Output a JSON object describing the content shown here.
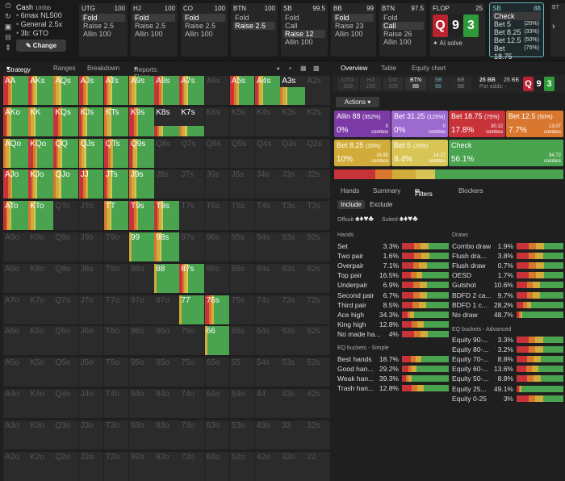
{
  "left_icons": [
    "⏻",
    "↻",
    "▣",
    "⊟",
    "⇕"
  ],
  "cash": {
    "title": "Cash",
    "bb": "100bb",
    "lines": [
      "6max NL500",
      "General 2.5x",
      "3b: GTO"
    ],
    "change": "Change"
  },
  "positions": [
    {
      "name": "UTG",
      "stack": "100",
      "options": [
        "Fold",
        "Raise 2.5",
        "Allin 100"
      ],
      "sel": 0
    },
    {
      "name": "HJ",
      "stack": "100",
      "options": [
        "Fold",
        "Raise 2.5",
        "Allin 100"
      ],
      "sel": 0
    },
    {
      "name": "CO",
      "stack": "100",
      "options": [
        "Fold",
        "Raise 2.5",
        "Allin 100"
      ],
      "sel": 0
    },
    {
      "name": "BTN",
      "stack": "100",
      "options": [
        "Fold",
        "Raise 2.5"
      ],
      "sel": 1
    },
    {
      "name": "SB",
      "stack": "99.5",
      "options": [
        "Fold",
        "Call",
        "Raise 12",
        "Allin 100"
      ],
      "sel": 2
    },
    {
      "name": "BB",
      "stack": "99",
      "options": [
        "Fold",
        "Raise 23",
        "Allin 100"
      ],
      "sel": 0
    },
    {
      "name": "BTN",
      "stack": "97.5",
      "options": [
        "Fold",
        "Call",
        "Raise 26",
        "Allin 100"
      ],
      "sel": 1
    }
  ],
  "flop": {
    "label": "FLOP",
    "pot": "25",
    "cards": [
      "Q",
      "9",
      "3"
    ],
    "ai": "AI solve"
  },
  "sb_box": {
    "label": "SB",
    "stack": "88",
    "options": [
      [
        "Check",
        ""
      ],
      [
        "Bet 5",
        "(20%)"
      ],
      [
        "Bet 8.25",
        "(33%)"
      ],
      [
        "Bet 12.5",
        "(50%)"
      ],
      [
        "Bet 18.75",
        "(75%)"
      ]
    ],
    "sel": 0
  },
  "next_box": {
    "label": "BT"
  },
  "left_tabs": {
    "strategy": "Strategy",
    "ranges": "Ranges",
    "breakdown": "Breakdown",
    "reports": "Reports: Flops"
  },
  "right_tabs": {
    "overview": "Overview",
    "table": "Table",
    "equity": "Equity chart"
  },
  "info": {
    "mini": [
      "UTG",
      "HJ",
      "CO",
      "BTN",
      "SB",
      "BB"
    ],
    "mini_vals": [
      "100",
      "100",
      "100",
      "88",
      "88",
      "88"
    ],
    "pot": "25 BB",
    "pot_odds": "Pot odds: -",
    "stack": "25 BB",
    "cards": [
      "Q",
      "9",
      "3"
    ]
  },
  "actions_label": "Actions",
  "action_boxes": [
    {
      "name": "Allin 88",
      "pct_bet": "(352%)",
      "freq": "0%",
      "combos": "0",
      "color": "#7c3aa6"
    },
    {
      "name": "Bet 31.25",
      "pct_bet": "(125%)",
      "freq": "0%",
      "combos": "0",
      "color": "#9d6ad0"
    },
    {
      "name": "Bet 18.75",
      "pct_bet": "(75%)",
      "freq": "17.8%",
      "combos": "30.12",
      "color": "#c8333a"
    },
    {
      "name": "Bet 12.5",
      "pct_bet": "(50%)",
      "freq": "7.7%",
      "combos": "13.07",
      "color": "#d9772e"
    },
    {
      "name": "Bet 8.25",
      "pct_bet": "(33%)",
      "freq": "10%",
      "combos": "16.93",
      "color": "#d2ac3a"
    },
    {
      "name": "Bet 5",
      "pct_bet": "(20%)",
      "freq": "8.4%",
      "combos": "14.27",
      "color": "#d8c555"
    },
    {
      "name": "Check",
      "pct_bet": "",
      "freq": "56.1%",
      "combos": "94.72",
      "color": "#4aa34e"
    }
  ],
  "combos_word": "combos",
  "hand_tabs": {
    "hands": "Hands",
    "summary": "Summary",
    "filters": "Filters",
    "blockers": "Blockers"
  },
  "include": {
    "include": "Include",
    "exclude": "Exclude",
    "offsuit": "Offsuit",
    "suited": "Suited"
  },
  "hands_title": "Hands",
  "hands": [
    [
      "Set",
      "3.3%"
    ],
    [
      "Two pair",
      "1.6%"
    ],
    [
      "Overpair",
      "7.1%"
    ],
    [
      "Top pair",
      "16.5%"
    ],
    [
      "Underpair",
      "6.9%"
    ],
    [
      "Second pair",
      "6.7%"
    ],
    [
      "Third pair",
      "8.5%"
    ],
    [
      "Ace high",
      "34.3%"
    ],
    [
      "King high",
      "12.8%"
    ],
    [
      "No made ha...",
      "4%"
    ]
  ],
  "eq_simple_title": "EQ buckets - Simple",
  "eq_simple": [
    [
      "Best hands",
      "18.7%"
    ],
    [
      "Good han...",
      "29.2%"
    ],
    [
      "Weak han...",
      "39.3%"
    ],
    [
      "Trash han...",
      "12.8%"
    ]
  ],
  "draws_title": "Draws",
  "draws": [
    [
      "Combo draw",
      "1.9%"
    ],
    [
      "Flush dra...",
      "3.8%"
    ],
    [
      "Flush draw",
      "0.7%"
    ],
    [
      "OESD",
      "1.7%"
    ],
    [
      "Gutshot",
      "10.6%"
    ],
    [
      "BDFD 2 ca...",
      "9.7%"
    ],
    [
      "BDFD 1 c...",
      "28.2%"
    ],
    [
      "No draw",
      "48.7%"
    ]
  ],
  "eq_adv_title": "EQ buckets - Advanced",
  "eq_adv": [
    [
      "Equity 90-...",
      "3.3%"
    ],
    [
      "Equity 80-...",
      "3.2%"
    ],
    [
      "Equity 70-...",
      "8.8%"
    ],
    [
      "Equity 60-...",
      "13.6%"
    ],
    [
      "Equity 50-...",
      "8.8%"
    ],
    [
      "Equity 25...",
      "49.1%"
    ],
    [
      "Equity 0-25",
      "3%"
    ]
  ],
  "grid_labels": [
    [
      "AA",
      "AKs",
      "AQs",
      "AJs",
      "ATs",
      "A9s",
      "A8s",
      "A7s",
      "A6s",
      "A5s",
      "A4s",
      "A3s",
      "A2s"
    ],
    [
      "AKo",
      "KK",
      "KQs",
      "KJs",
      "KTs",
      "K9s",
      "K8s",
      "K7s",
      "K6s",
      "K5s",
      "K4s",
      "K3s",
      "K2s"
    ],
    [
      "AQo",
      "KQo",
      "QQ",
      "QJs",
      "QTs",
      "Q9s",
      "Q8s",
      "Q7s",
      "Q6s",
      "Q5s",
      "Q4s",
      "Q3s",
      "Q2s"
    ],
    [
      "AJo",
      "KJo",
      "QJo",
      "JJ",
      "JTs",
      "J9s",
      "J8s",
      "J7s",
      "J6s",
      "J5s",
      "J4s",
      "J3s",
      "J2s"
    ],
    [
      "ATo",
      "KTo",
      "QTo",
      "JTo",
      "TT",
      "T9s",
      "T8s",
      "T7s",
      "T6s",
      "T5s",
      "T4s",
      "T3s",
      "T2s"
    ],
    [
      "A9o",
      "K9o",
      "Q9o",
      "J9o",
      "T9o",
      "99",
      "98s",
      "97s",
      "96s",
      "95s",
      "94s",
      "93s",
      "92s"
    ],
    [
      "A8o",
      "K8o",
      "Q8o",
      "J8o",
      "T8o",
      "98o",
      "88",
      "87s",
      "86s",
      "85s",
      "84s",
      "83s",
      "82s"
    ],
    [
      "A7o",
      "K7o",
      "Q7o",
      "J7o",
      "T7o",
      "97o",
      "87o",
      "77",
      "76s",
      "75s",
      "74s",
      "73s",
      "72s"
    ],
    [
      "A6o",
      "K6o",
      "Q6o",
      "J6o",
      "T6o",
      "96o",
      "86o",
      "76o",
      "66",
      "65s",
      "64s",
      "63s",
      "62s"
    ],
    [
      "A5o",
      "K5o",
      "Q5o",
      "J5o",
      "T5o",
      "95o",
      "85o",
      "75o",
      "65o",
      "55",
      "54s",
      "53s",
      "52s"
    ],
    [
      "A4o",
      "K4o",
      "Q4o",
      "J4o",
      "T4o",
      "94o",
      "84o",
      "74o",
      "64o",
      "54o",
      "44",
      "43s",
      "42s"
    ],
    [
      "A3o",
      "K3o",
      "Q3o",
      "J3o",
      "T3o",
      "93o",
      "83o",
      "73o",
      "63o",
      "53o",
      "43o",
      "33",
      "32s"
    ],
    [
      "A2o",
      "K2o",
      "Q2o",
      "J2o",
      "T2o",
      "92o",
      "82o",
      "72o",
      "62o",
      "52o",
      "42o",
      "32o",
      "22"
    ]
  ],
  "grid_heights": [
    [
      100,
      100,
      100,
      100,
      100,
      100,
      100,
      100,
      0,
      100,
      100,
      60,
      0
    ],
    [
      100,
      100,
      100,
      100,
      100,
      100,
      35,
      35,
      0,
      0,
      0,
      0,
      0
    ],
    [
      100,
      100,
      100,
      100,
      100,
      100,
      0,
      0,
      0,
      0,
      0,
      0,
      0
    ],
    [
      100,
      100,
      100,
      100,
      100,
      100,
      0,
      0,
      0,
      0,
      0,
      0,
      0
    ],
    [
      100,
      100,
      0,
      0,
      100,
      100,
      100,
      0,
      0,
      0,
      0,
      0,
      0
    ],
    [
      0,
      0,
      0,
      0,
      0,
      100,
      100,
      0,
      0,
      0,
      0,
      0,
      0
    ],
    [
      0,
      0,
      0,
      0,
      0,
      0,
      100,
      100,
      0,
      0,
      0,
      0,
      0
    ],
    [
      0,
      0,
      0,
      0,
      0,
      0,
      0,
      100,
      100,
      0,
      0,
      0,
      0
    ],
    [
      0,
      0,
      0,
      0,
      0,
      0,
      0,
      0,
      100,
      0,
      0,
      0,
      0
    ],
    [
      0,
      0,
      0,
      0,
      0,
      0,
      0,
      0,
      0,
      0,
      0,
      0,
      0
    ],
    [
      0,
      0,
      0,
      0,
      0,
      0,
      0,
      0,
      0,
      0,
      0,
      0,
      0
    ],
    [
      0,
      0,
      0,
      0,
      0,
      0,
      0,
      0,
      0,
      0,
      0,
      0,
      0
    ],
    [
      0,
      0,
      0,
      0,
      0,
      0,
      0,
      0,
      0,
      0,
      0,
      0,
      0
    ]
  ],
  "colors": {
    "check": "#4aa34e",
    "b5": "#d8c555",
    "b825": "#d2ac3a",
    "b125": "#d9772e",
    "b1875": "#c8333a",
    "dark": "#262626"
  }
}
